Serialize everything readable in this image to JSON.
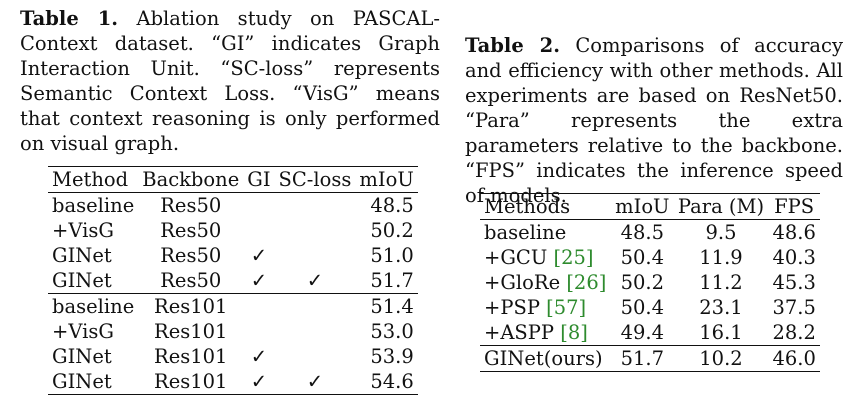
{
  "table1": {
    "caption_label": "Table 1.",
    "caption_text": "Ablation study on PASCAL-Context dataset. “GI” indicates Graph Interaction Unit. “SC-loss” represents Semantic Context Loss. “VisG” means that context reasoning is only performed on visual graph.",
    "headers": [
      "Method",
      "Backbone",
      "GI",
      "SC-loss",
      "mIoU"
    ],
    "groups": [
      [
        [
          "baseline",
          "Res50",
          "",
          "",
          "48.5"
        ],
        [
          "+VisG",
          "Res50",
          "",
          "",
          "50.2"
        ],
        [
          "GINet",
          "Res50",
          "✓",
          "",
          "51.0"
        ],
        [
          "GINet",
          "Res50",
          "✓",
          "✓",
          "51.7"
        ]
      ],
      [
        [
          "baseline",
          "Res101",
          "",
          "",
          "51.4"
        ],
        [
          "+VisG",
          "Res101",
          "",
          "",
          "53.0"
        ],
        [
          "GINet",
          "Res101",
          "✓",
          "",
          "53.9"
        ],
        [
          "GINet",
          "Res101",
          "✓",
          "✓",
          "54.6"
        ]
      ]
    ]
  },
  "table2": {
    "caption_label": "Table 2.",
    "caption_text": "Comparisons of accuracy and efficiency with other methods. All experiments are based on ResNet50. “Para” represents the extra parameters relative to the backbone. “FPS” indicates the inference speed of models.",
    "headers": [
      "Methods",
      "mIoU",
      "Para (M)",
      "FPS"
    ],
    "rows": [
      {
        "method": "baseline",
        "cite": "",
        "miou": "48.5",
        "para": "9.5",
        "fps": "48.6"
      },
      {
        "method": "+GCU ",
        "cite": "[25]",
        "miou": "50.4",
        "para": "11.9",
        "fps": "40.3"
      },
      {
        "method": "+GloRe ",
        "cite": "[26]",
        "miou": "50.2",
        "para": "11.2",
        "fps": "45.3"
      },
      {
        "method": "+PSP ",
        "cite": "[57]",
        "miou": "50.4",
        "para": "23.1",
        "fps": "37.5"
      },
      {
        "method": "+ASPP ",
        "cite": "[8]",
        "miou": "49.4",
        "para": "16.1",
        "fps": "28.2"
      }
    ],
    "final_row": {
      "method": "GINet(ours)",
      "miou": "51.7",
      "para": "10.2",
      "fps": "46.0"
    },
    "colors": {
      "citation": "#2e8b2e"
    }
  }
}
